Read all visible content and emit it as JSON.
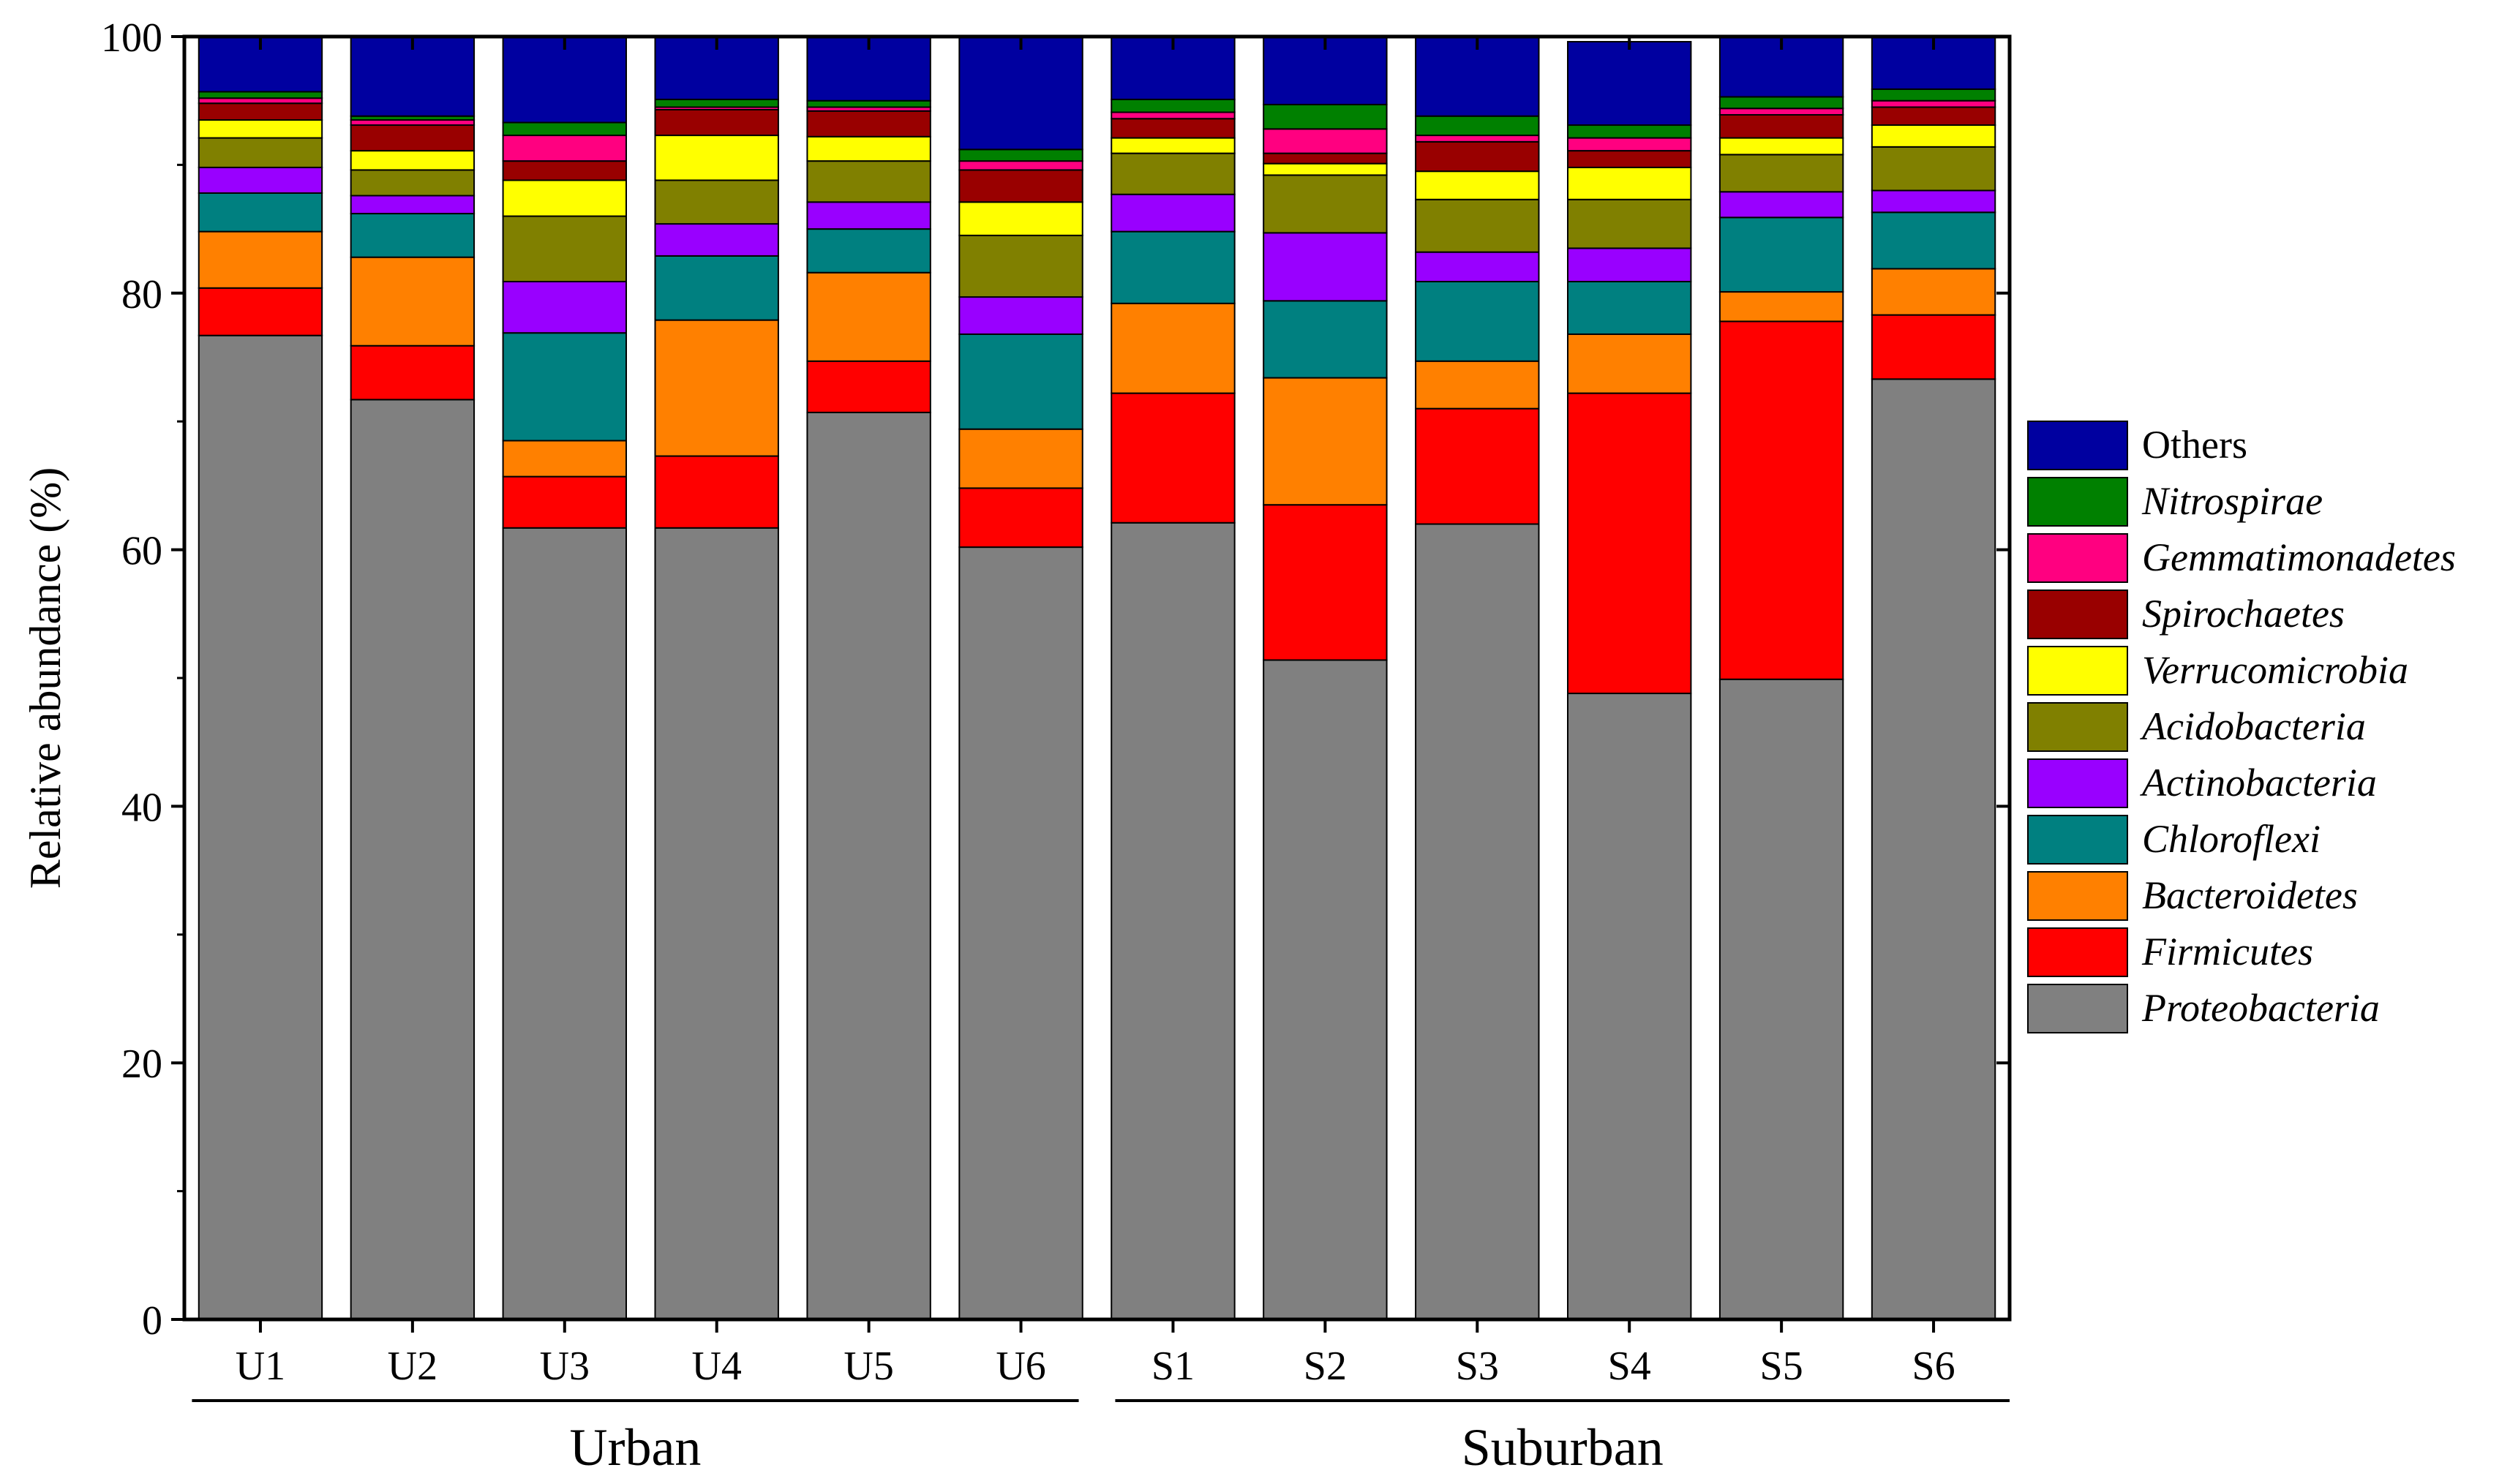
{
  "chart_data": {
    "type": "bar",
    "stacked": true,
    "title": "",
    "xlabel": "",
    "ylabel": "Relative abundance (%)",
    "ylim": [
      0,
      100
    ],
    "yticks": [
      "0",
      "20",
      "40",
      "60",
      "80",
      "100"
    ],
    "categories": [
      "U1",
      "U2",
      "U3",
      "U4",
      "U5",
      "U6",
      "S1",
      "S2",
      "S3",
      "S4",
      "S5",
      "S6"
    ],
    "groups": [
      {
        "label": "Urban",
        "members": [
          "U1",
          "U2",
          "U3",
          "U4",
          "U5",
          "U6"
        ]
      },
      {
        "label": "Suburban",
        "members": [
          "S1",
          "S2",
          "S3",
          "S4",
          "S5",
          "S6"
        ]
      }
    ],
    "legend_position": "right",
    "series": [
      {
        "name": "Proteobacteria",
        "italic": true,
        "color": "#808080",
        "values": [
          76.7,
          71.7,
          61.7,
          61.7,
          70.7,
          60.2,
          62.1,
          51.4,
          62.0,
          48.8,
          49.9,
          73.3
        ]
      },
      {
        "name": "Firmicutes",
        "italic": true,
        "color": "#ff0000",
        "values": [
          3.7,
          4.2,
          4.0,
          5.6,
          4.0,
          4.6,
          10.1,
          12.1,
          9.0,
          23.4,
          27.9,
          5.0
        ]
      },
      {
        "name": "Bacteroidetes",
        "italic": true,
        "color": "#ff8000",
        "values": [
          4.4,
          6.9,
          2.8,
          10.6,
          6.9,
          4.6,
          7.0,
          9.9,
          3.7,
          4.6,
          2.3,
          3.6
        ]
      },
      {
        "name": "Chloroflexi",
        "italic": true,
        "color": "#008080",
        "values": [
          3.0,
          3.4,
          8.4,
          5.0,
          3.4,
          7.4,
          5.6,
          6.0,
          6.2,
          4.1,
          5.8,
          4.4
        ]
      },
      {
        "name": "Actinobacteria",
        "italic": true,
        "color": "#9900ff",
        "values": [
          2.0,
          1.4,
          4.0,
          2.5,
          2.1,
          2.9,
          2.9,
          5.3,
          2.3,
          2.6,
          2.0,
          1.7
        ]
      },
      {
        "name": "Acidobacteria",
        "italic": true,
        "color": "#808000",
        "values": [
          2.3,
          2.0,
          5.1,
          3.4,
          3.2,
          4.8,
          3.2,
          4.5,
          4.1,
          3.8,
          2.9,
          3.4
        ]
      },
      {
        "name": "Verrucomicrobia",
        "italic": true,
        "color": "#ffff00",
        "values": [
          1.4,
          1.5,
          2.8,
          3.5,
          1.9,
          2.6,
          1.2,
          0.9,
          2.2,
          2.5,
          1.3,
          1.7
        ]
      },
      {
        "name": "Spirochaetes",
        "italic": true,
        "color": "#990000",
        "values": [
          1.3,
          2.0,
          1.5,
          2.0,
          2.0,
          2.5,
          1.5,
          0.8,
          2.3,
          1.3,
          1.8,
          1.4
        ]
      },
      {
        "name": "Gemmatimonadetes",
        "italic": true,
        "color": "#ff0080",
        "values": [
          0.4,
          0.4,
          2.0,
          0.2,
          0.3,
          0.7,
          0.5,
          1.9,
          0.5,
          1.0,
          0.5,
          0.5
        ]
      },
      {
        "name": "Nitrospirae",
        "italic": true,
        "color": "#008000",
        "values": [
          0.5,
          0.3,
          1.0,
          0.6,
          0.5,
          0.9,
          1.0,
          1.9,
          1.5,
          1.0,
          0.9,
          0.9
        ]
      },
      {
        "name": "Others",
        "italic": false,
        "color": "#0000a0",
        "values": [
          4.3,
          6.2,
          6.7,
          4.9,
          5.0,
          8.8,
          4.9,
          5.3,
          6.2,
          6.5,
          4.7,
          4.1
        ]
      }
    ]
  }
}
